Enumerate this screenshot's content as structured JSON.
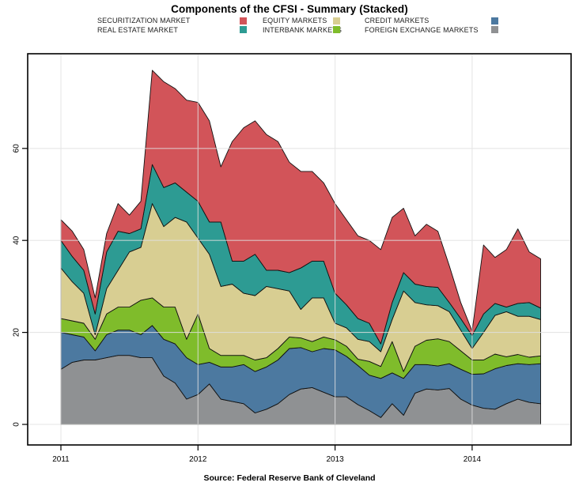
{
  "title": "Components of the CFSI - Summary (Stacked)",
  "source": "Source: Federal Reserve Bank of Cleveland",
  "legend": {
    "position": "top",
    "items": [
      {
        "label": "SECURITIZATION MARKET",
        "color": "#D25459"
      },
      {
        "label": "EQUITY MARKETS",
        "color": "#D8CE92"
      },
      {
        "label": "CREDIT MARKETS",
        "color": "#4C79A0"
      },
      {
        "label": "REAL ESTATE MARKET",
        "color": "#2D9B93"
      },
      {
        "label": "INTERBANK MARKETS",
        "color": "#7FBC2B"
      },
      {
        "label": "FOREIGN EXCHANGE MARKETS",
        "color": "#8F9193"
      }
    ]
  },
  "chart_data": {
    "type": "area",
    "stacked": true,
    "grid": true,
    "x_first_month": "2011-01",
    "x_last_month": "2014-07",
    "x_start": 2011.0,
    "x_step_years": 0.0833333,
    "x_tick_values": [
      2011,
      2012,
      2013,
      2014
    ],
    "x_tick_labels": [
      "2011",
      "2012",
      "2013",
      "2014"
    ],
    "y_tick_values": [
      0,
      20,
      40,
      60
    ],
    "y_tick_labels": [
      "0",
      "20",
      "40",
      "60"
    ],
    "xlim": [
      2010.76,
      2014.72
    ],
    "ylim": [
      -4.5,
      80.6
    ],
    "series": [
      {
        "name": "FOREIGN EXCHANGE MARKETS",
        "color": "#8F9193",
        "values": [
          12,
          13.5,
          14,
          14,
          14.5,
          15,
          15,
          14.5,
          14.5,
          10.5,
          9,
          5.5,
          6.5,
          8.8,
          5.5,
          5,
          4.5,
          2.5,
          3.3,
          4.5,
          6.5,
          7.7,
          8,
          7,
          6,
          6,
          4.3,
          3,
          1.5,
          4.5,
          2,
          6.8,
          7.7,
          7.5,
          7.8,
          5.5,
          4.2,
          3.5,
          3.3,
          4.5,
          5.5,
          4.8,
          4.5
        ]
      },
      {
        "name": "CREDIT MARKETS",
        "color": "#4C79A0",
        "values": [
          8,
          6,
          5,
          2,
          5,
          5.5,
          5.5,
          5,
          7,
          8,
          8.5,
          9,
          6.5,
          4.7,
          7,
          7.5,
          8.5,
          9,
          9.2,
          9.5,
          10,
          9,
          7.8,
          9.5,
          10.2,
          8.8,
          8.5,
          7.7,
          8.5,
          6.7,
          8,
          6.2,
          5.3,
          5.2,
          5.4,
          6.5,
          6.7,
          7.5,
          8.8,
          8.3,
          7.7,
          8.2,
          8.7
        ]
      },
      {
        "name": "INTERBANK MARKETS",
        "color": "#7FBC2B",
        "values": [
          3,
          3,
          3,
          2.5,
          4.5,
          5,
          5,
          7.5,
          6,
          7,
          8,
          4,
          11,
          3,
          2.5,
          2.5,
          2,
          2.5,
          2,
          2.5,
          2.5,
          2.1,
          2.2,
          2.5,
          2.2,
          2.2,
          1.4,
          3,
          2.6,
          6.8,
          1.5,
          4,
          5.3,
          5.9,
          4.8,
          4,
          3.1,
          3,
          3.2,
          1.9,
          2,
          1.6,
          1.7
        ]
      },
      {
        "name": "EQUITY MARKETS",
        "color": "#D8CE92",
        "values": [
          11,
          8.5,
          6.5,
          1,
          5.5,
          8,
          12,
          11.5,
          20.5,
          17.5,
          19.5,
          25.5,
          16.5,
          20.5,
          15,
          15.5,
          13.5,
          14,
          15.5,
          13,
          10,
          6.2,
          9.5,
          8.5,
          3.6,
          4,
          4.3,
          4.3,
          3.2,
          4.8,
          17.5,
          9.5,
          7.7,
          7.2,
          6.5,
          4.5,
          2.5,
          6,
          8.4,
          9.8,
          8.3,
          8.9,
          7.9
        ]
      },
      {
        "name": "REAL ESTATE MARKET",
        "color": "#2D9B93",
        "values": [
          6,
          5.5,
          5,
          4.5,
          8,
          8.5,
          4,
          4,
          8.5,
          8.5,
          7.5,
          6.5,
          8,
          7,
          14,
          5,
          7,
          9,
          3.5,
          4,
          4,
          9,
          8,
          8,
          6.5,
          5,
          4.5,
          4,
          1.7,
          3.7,
          4,
          4,
          4,
          4,
          2,
          2.5,
          2.8,
          4,
          2.6,
          1,
          2.8,
          3,
          2.5
        ]
      },
      {
        "name": "SECURITIZATION MARKET",
        "color": "#D25459",
        "values": [
          4.5,
          5.5,
          4.5,
          3.5,
          4,
          6,
          4,
          6,
          20.5,
          23,
          20.5,
          20,
          21.5,
          22,
          12,
          26,
          29,
          29,
          29.5,
          28,
          24,
          21,
          19.5,
          17,
          19.5,
          18.5,
          18,
          18,
          20.5,
          18.5,
          14,
          10.5,
          13.5,
          12.2,
          8,
          3.5,
          1,
          15,
          10,
          12.5,
          16.2,
          11,
          10.7
        ]
      }
    ]
  }
}
